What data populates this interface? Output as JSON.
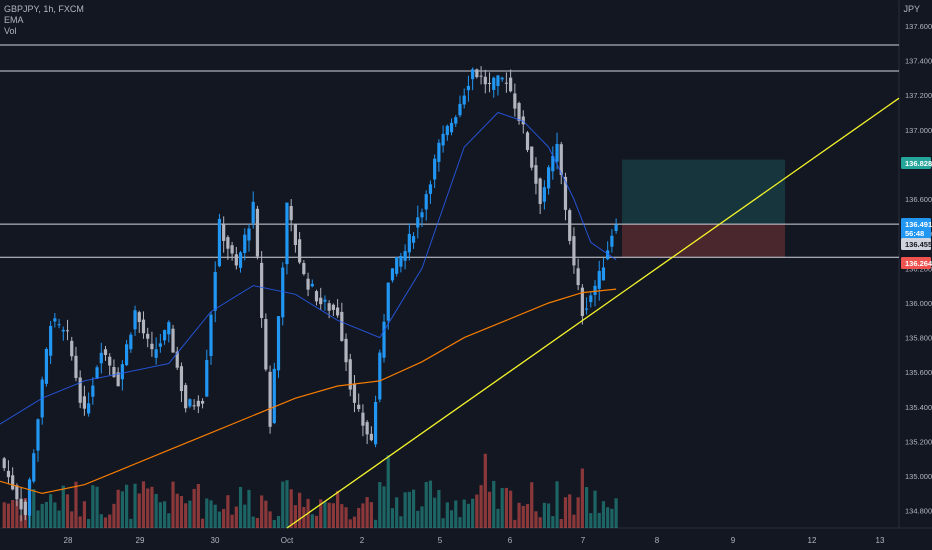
{
  "legend": {
    "symbol": "GBPJPY, 1h, FXCM",
    "ema": "EMA",
    "vol": "Vol"
  },
  "currency": "JPY",
  "colors": {
    "background": "#131722",
    "up_candle": "#2196f3",
    "down_candle": "#b2b5be",
    "vol_up": "#26a69a",
    "vol_down": "#ef5350",
    "ema_slow": "#f57c00",
    "ema_fast": "#2962ff",
    "trendline": "#f5f52b",
    "target_zone": "#26a69a",
    "stop_zone": "#ef5350",
    "hline": "#d1d4dc"
  },
  "chart_data": {
    "type": "candlestick",
    "ylim": [
      134.7,
      137.75
    ],
    "y_ticks": [
      "137.600",
      "137.400",
      "137.200",
      "137.000",
      "136.800",
      "136.600",
      "136.400",
      "136.200",
      "136.000",
      "135.800",
      "135.600",
      "135.400",
      "135.200",
      "135.000",
      "134.800"
    ],
    "x_ticks": [
      "28",
      "29",
      "30",
      "Oct",
      "2",
      "5",
      "6",
      "7",
      "8",
      "9",
      "12",
      "13"
    ],
    "price_labels": [
      {
        "text": "136.828",
        "kind": "target"
      },
      {
        "text": "136.491",
        "kind": "last"
      },
      {
        "text": "56:48",
        "kind": "countdown"
      },
      {
        "text": "136.455",
        "kind": "entry"
      },
      {
        "text": "136.264",
        "kind": "stop"
      }
    ],
    "horizontal_lines": [
      137.49,
      137.34,
      136.455,
      136.264
    ],
    "position": {
      "entry": 136.455,
      "target": 136.828,
      "stop": 136.264
    },
    "trendline": {
      "from": {
        "x": "Oct",
        "y": 134.7
      },
      "to": {
        "x": "12",
        "y": 136.83
      }
    },
    "close_path": [
      [
        0,
        135.1
      ],
      [
        6,
        134.78
      ],
      [
        12,
        135.9
      ],
      [
        16,
        135.8
      ],
      [
        20,
        135.35
      ],
      [
        24,
        135.75
      ],
      [
        28,
        135.55
      ],
      [
        32,
        135.95
      ],
      [
        36,
        135.7
      ],
      [
        40,
        135.85
      ],
      [
        44,
        135.4
      ],
      [
        48,
        135.45
      ],
      [
        52,
        136.45
      ],
      [
        56,
        136.2
      ],
      [
        60,
        136.55
      ],
      [
        64,
        135.3
      ],
      [
        68,
        136.55
      ],
      [
        72,
        136.15
      ],
      [
        76,
        136.0
      ],
      [
        80,
        135.95
      ],
      [
        84,
        135.4
      ],
      [
        88,
        135.2
      ],
      [
        92,
        136.15
      ],
      [
        96,
        136.3
      ],
      [
        100,
        136.55
      ],
      [
        104,
        136.9
      ],
      [
        108,
        137.1
      ],
      [
        112,
        137.35
      ],
      [
        116,
        137.25
      ],
      [
        120,
        137.3
      ],
      [
        124,
        137.0
      ],
      [
        128,
        136.6
      ],
      [
        132,
        136.9
      ],
      [
        136,
        136.2
      ],
      [
        138,
        135.95
      ],
      [
        142,
        136.15
      ],
      [
        146,
        136.49
      ]
    ],
    "ema_fast_path": [
      [
        0,
        135.3
      ],
      [
        10,
        135.45
      ],
      [
        20,
        135.55
      ],
      [
        30,
        135.6
      ],
      [
        40,
        135.65
      ],
      [
        50,
        135.95
      ],
      [
        60,
        136.1
      ],
      [
        70,
        136.05
      ],
      [
        80,
        135.9
      ],
      [
        90,
        135.8
      ],
      [
        100,
        136.2
      ],
      [
        110,
        136.9
      ],
      [
        118,
        137.1
      ],
      [
        124,
        137.05
      ],
      [
        130,
        136.9
      ],
      [
        136,
        136.6
      ],
      [
        140,
        136.35
      ],
      [
        146,
        136.25
      ]
    ],
    "ema_slow_path": [
      [
        0,
        134.97
      ],
      [
        10,
        134.9
      ],
      [
        20,
        134.95
      ],
      [
        30,
        135.05
      ],
      [
        40,
        135.15
      ],
      [
        50,
        135.25
      ],
      [
        60,
        135.35
      ],
      [
        70,
        135.45
      ],
      [
        80,
        135.52
      ],
      [
        90,
        135.55
      ],
      [
        100,
        135.66
      ],
      [
        110,
        135.8
      ],
      [
        120,
        135.9
      ],
      [
        130,
        136.0
      ],
      [
        138,
        136.06
      ],
      [
        146,
        136.08
      ]
    ]
  }
}
